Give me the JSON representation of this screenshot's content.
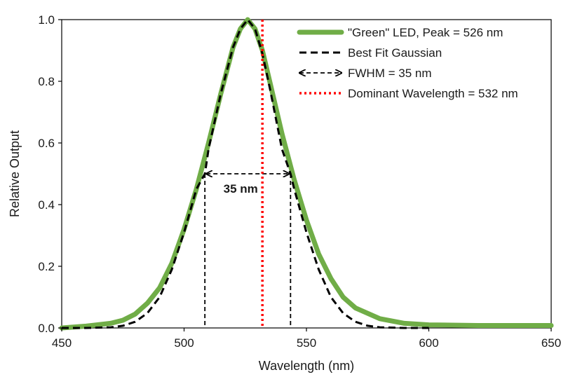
{
  "chart_data": {
    "type": "line",
    "title": "",
    "xlabel": "Wavelength (nm)",
    "ylabel": "Relative Output",
    "xlim": [
      450,
      650
    ],
    "ylim": [
      0,
      1.0
    ],
    "x_ticks": [
      "450",
      "500",
      "550",
      "600",
      "650"
    ],
    "y_ticks": [
      "0.0",
      "0.2",
      "0.4",
      "0.6",
      "0.8",
      "1.0"
    ],
    "grid": false,
    "legend_position": "top-right",
    "colors": {
      "led": "#70ad47",
      "gaussian": "#000000",
      "fwhm": "#000000",
      "dominant": "#ff0000"
    },
    "series": [
      {
        "name": "\"Green\" LED, Peak = 526 nm",
        "x": [
          450,
          460,
          470,
          475,
          480,
          485,
          490,
          495,
          500,
          505,
          510,
          515,
          520,
          523,
          526,
          529,
          532,
          535,
          540,
          545,
          550,
          555,
          560,
          565,
          570,
          580,
          590,
          600,
          620,
          650
        ],
        "y": [
          0.0,
          0.006,
          0.015,
          0.025,
          0.045,
          0.08,
          0.13,
          0.21,
          0.32,
          0.45,
          0.6,
          0.76,
          0.91,
          0.97,
          1.0,
          0.97,
          0.9,
          0.8,
          0.63,
          0.48,
          0.35,
          0.24,
          0.16,
          0.1,
          0.065,
          0.03,
          0.015,
          0.01,
          0.008,
          0.008
        ]
      },
      {
        "name": "Best Fit Gaussian",
        "x": [
          450,
          460,
          470,
          475,
          480,
          485,
          490,
          495,
          500,
          505,
          508.5,
          510,
          515,
          520,
          523,
          526,
          529,
          532,
          535,
          540,
          543.5,
          545,
          550,
          555,
          560,
          565,
          570,
          575,
          580,
          590,
          600
        ],
        "y": [
          0.0,
          0.0,
          0.002,
          0.007,
          0.02,
          0.048,
          0.1,
          0.19,
          0.31,
          0.45,
          0.5,
          0.58,
          0.76,
          0.91,
          0.97,
          1.0,
          0.97,
          0.89,
          0.78,
          0.58,
          0.5,
          0.45,
          0.31,
          0.19,
          0.1,
          0.048,
          0.02,
          0.007,
          0.002,
          0.0,
          0.0
        ]
      }
    ],
    "fwhm": {
      "name": "FWHM = 35 nm",
      "x_start": 508.5,
      "x_end": 543.5,
      "y": 0.5,
      "label": "35 nm"
    },
    "dominant": {
      "name": "Dominant Wavelength = 532 nm",
      "x": 532
    }
  }
}
